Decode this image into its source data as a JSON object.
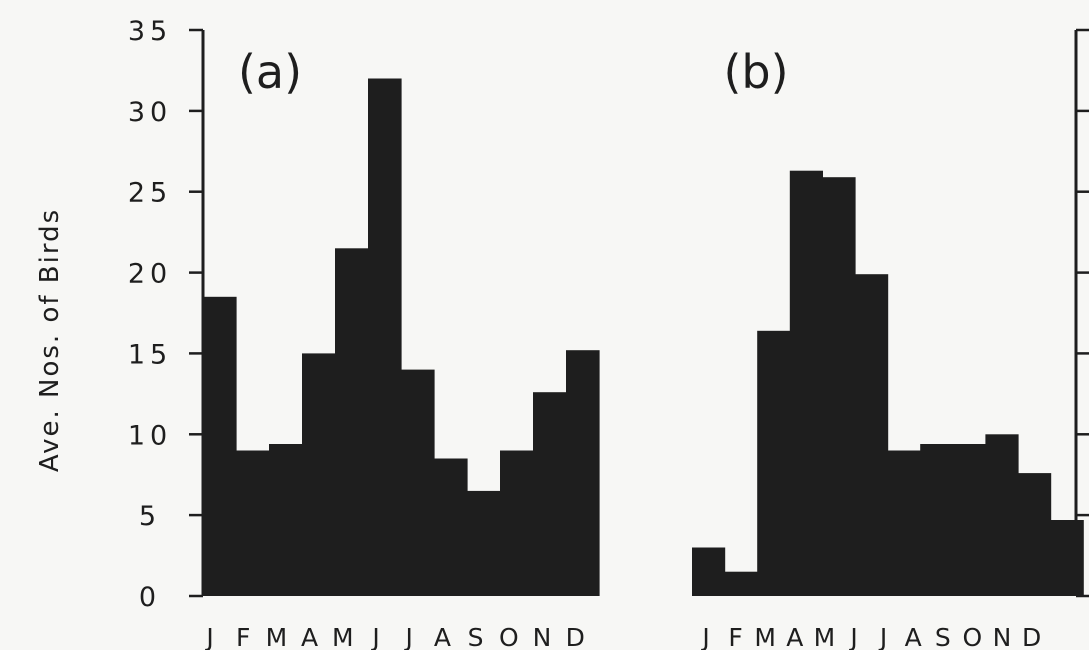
{
  "y_axis_label": "Ave. Nos. of Birds",
  "chart_data": [
    {
      "type": "bar",
      "panel_label": "(a)",
      "categories": [
        "J",
        "F",
        "M",
        "A",
        "M",
        "J",
        "J",
        "A",
        "S",
        "O",
        "N",
        "D"
      ],
      "values": [
        18.5,
        9,
        9.4,
        15,
        21.5,
        32,
        14,
        8.5,
        6.5,
        9,
        12.6,
        15.2
      ],
      "ylabel": "Ave. Nos. of Birds",
      "ylim": [
        0,
        35
      ],
      "yticks": [
        0,
        5,
        10,
        15,
        20,
        25,
        30,
        35
      ],
      "grid": false
    },
    {
      "type": "bar",
      "panel_label": "(b)",
      "categories": [
        "J",
        "F",
        "M",
        "A",
        "M",
        "J",
        "J",
        "A",
        "S",
        "O",
        "N",
        "D"
      ],
      "values": [
        3,
        1.5,
        16.4,
        26.3,
        25.9,
        19.9,
        9,
        9.4,
        9.4,
        10,
        7.6,
        4.7
      ],
      "ylim": [
        0,
        35
      ],
      "grid": false
    }
  ]
}
